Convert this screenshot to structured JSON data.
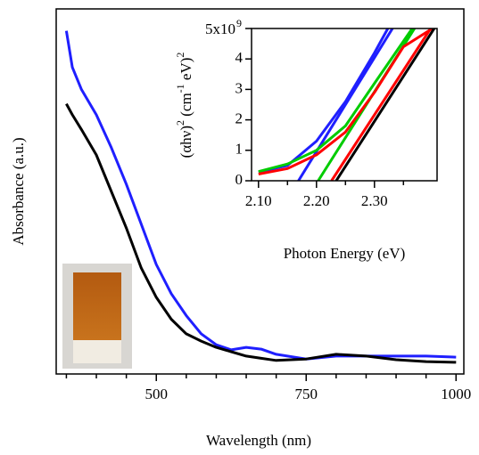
{
  "chart_data": [
    {
      "type": "line",
      "xlabel": "Wavelength (nm)",
      "ylabel": "Absorbance (a.u.)",
      "xlim": [
        333,
        1013
      ],
      "ylim": [
        0,
        1
      ],
      "xticks": [
        500,
        750,
        1000
      ],
      "xminor_ticks": [
        350,
        400,
        450,
        550,
        600,
        650,
        700,
        800,
        850,
        900,
        950
      ],
      "x": [
        350,
        360,
        375,
        400,
        425,
        450,
        475,
        500,
        525,
        550,
        575,
        600,
        625,
        650,
        675,
        700,
        750,
        800,
        850,
        900,
        950,
        1000
      ],
      "series": [
        {
          "color": "#1f1fff",
          "values": [
            0.94,
            0.84,
            0.78,
            0.71,
            0.62,
            0.52,
            0.41,
            0.3,
            0.22,
            0.16,
            0.11,
            0.08,
            0.066,
            0.073,
            0.068,
            0.054,
            0.041,
            0.049,
            0.049,
            0.049,
            0.049,
            0.046
          ]
        },
        {
          "color": "#000000",
          "values": [
            0.74,
            0.71,
            0.67,
            0.6,
            0.5,
            0.4,
            0.29,
            0.21,
            0.15,
            0.11,
            0.09,
            0.073,
            0.061,
            0.049,
            0.043,
            0.037,
            0.041,
            0.054,
            0.049,
            0.039,
            0.034,
            0.032
          ]
        }
      ]
    },
    {
      "type": "line",
      "xlabel": "Photon Energy (eV)",
      "ylabel_parts": [
        {
          "text": "(αhν)"
        },
        {
          "text": "2",
          "sup": true
        },
        {
          "text": " (cm"
        },
        {
          "text": "-1",
          "sup": true
        },
        {
          "text": " eV)"
        },
        {
          "text": "2",
          "sup": true
        }
      ],
      "xlim": [
        2.088,
        2.408
      ],
      "ylim": [
        0,
        5
      ],
      "xticks": [
        {
          "value": 2.1,
          "label": "2.10"
        },
        {
          "value": 2.2,
          "label": "2.20"
        },
        {
          "value": 2.3,
          "label": "2.30"
        }
      ],
      "xminor_ticks": [
        2.15,
        2.25,
        2.35
      ],
      "yticks": [
        0,
        1,
        2,
        3,
        4,
        {
          "value": 5,
          "label": "5x10"
        }
      ],
      "y_multiplier_exponent": "9",
      "series": [
        {
          "color": "#1f1fff",
          "x": [
            2.1,
            2.15,
            2.2,
            2.25,
            2.3,
            2.323
          ],
          "values": [
            0.29,
            0.5,
            1.3,
            2.6,
            4.2,
            5
          ]
        },
        {
          "color": "#1f1fff",
          "x": [
            2.169,
            2.331
          ],
          "values": [
            0,
            5
          ]
        },
        {
          "color": "#00cc00",
          "x": [
            2.1,
            2.15,
            2.2,
            2.25,
            2.3,
            2.365
          ],
          "values": [
            0.3,
            0.55,
            1.0,
            1.8,
            3.2,
            5
          ]
        },
        {
          "color": "#00cc00",
          "x": [
            2.203,
            2.369
          ],
          "values": [
            0,
            5
          ]
        },
        {
          "color": "#ff0000",
          "x": [
            2.1,
            2.15,
            2.2,
            2.25,
            2.3,
            2.35,
            2.4
          ],
          "values": [
            0.22,
            0.4,
            0.85,
            1.6,
            2.9,
            4.4,
            5
          ]
        },
        {
          "color": "#ff0000",
          "x": [
            2.226,
            2.397
          ],
          "values": [
            0,
            5
          ]
        },
        {
          "color": "#000000",
          "x": [
            2.234,
            2.403
          ],
          "values": [
            0,
            5
          ]
        }
      ]
    }
  ]
}
